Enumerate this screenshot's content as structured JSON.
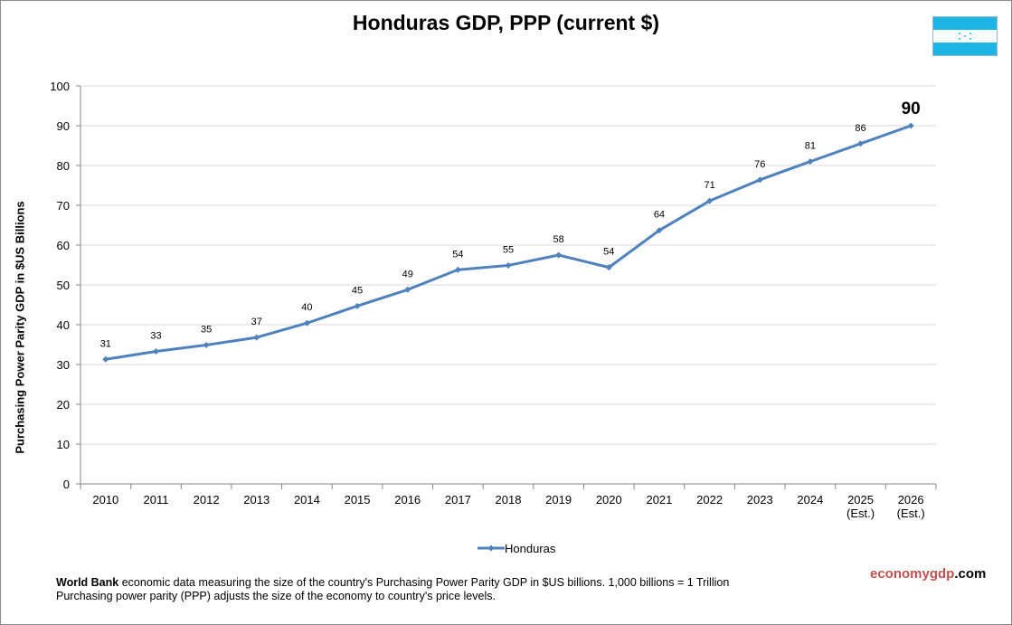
{
  "chart_data": {
    "type": "line",
    "title": "Honduras GDP, PPP (current $)",
    "ylabel": "Purchasing Power Parity GDP in $US Billions",
    "xlabel": "",
    "categories": [
      "2010",
      "2011",
      "2012",
      "2013",
      "2014",
      "2015",
      "2016",
      "2017",
      "2018",
      "2019",
      "2020",
      "2021",
      "2022",
      "2023",
      "2024",
      "2025 (Est.)",
      "2026 (Est.)"
    ],
    "category_lines": [
      [
        "2010"
      ],
      [
        "2011"
      ],
      [
        "2012"
      ],
      [
        "2013"
      ],
      [
        "2014"
      ],
      [
        "2015"
      ],
      [
        "2016"
      ],
      [
        "2017"
      ],
      [
        "2018"
      ],
      [
        "2019"
      ],
      [
        "2020"
      ],
      [
        "2021"
      ],
      [
        "2022"
      ],
      [
        "2023"
      ],
      [
        "2024"
      ],
      [
        "2025",
        "(Est.)"
      ],
      [
        "2026",
        "(Est.)"
      ]
    ],
    "series": [
      {
        "name": "Honduras",
        "values": [
          31.3,
          33.3,
          34.9,
          36.8,
          40.4,
          44.7,
          48.8,
          53.8,
          54.9,
          57.5,
          54.4,
          63.7,
          71.1,
          76.4,
          81.0,
          85.5,
          90.0
        ],
        "labels": [
          "31",
          "33",
          "35",
          "37",
          "40",
          "45",
          "49",
          "54",
          "55",
          "58",
          "54",
          "64",
          "71",
          "76",
          "81",
          "86",
          "90"
        ]
      }
    ],
    "ylim": [
      0,
      100
    ],
    "yticks": [
      0,
      10,
      20,
      30,
      40,
      50,
      60,
      70,
      80,
      90,
      100
    ],
    "grid": true,
    "legend_position": "bottom-center",
    "colors": {
      "series": "#4f81bd",
      "grid": "#d9d9d9",
      "axis": "#868686"
    }
  },
  "footer": {
    "source_bold": "World Bank",
    "line1_rest": " economic data measuring the size of the country's Purchasing Power Parity GDP in $US billions. 1,000 billions = 1 Trillion",
    "line2": "Purchasing power parity (PPP) adjusts the size of the economy to country's price levels."
  },
  "brand": {
    "part1": "economygdp",
    "part2": ".com"
  },
  "flag": {
    "icon": "honduras-flag-icon",
    "stripe_color": "#1fb4e6",
    "star_color": "#1fb4e6"
  }
}
